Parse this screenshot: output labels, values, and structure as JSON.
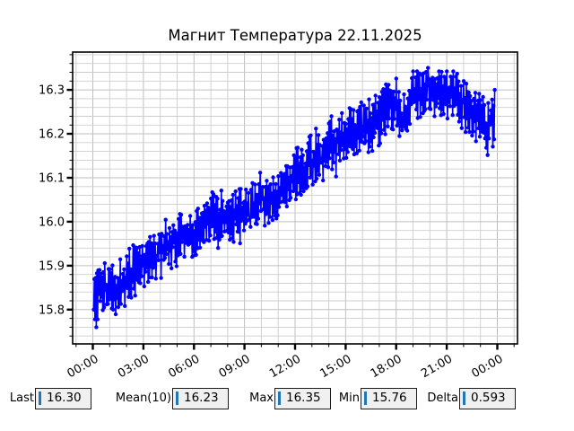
{
  "window": {
    "background": "#ffffff"
  },
  "chart_data": {
    "type": "line",
    "title": "Магнит Температура 22.11.2025",
    "xlabel": "",
    "ylabel": "",
    "x_tick_hours": [
      0,
      3,
      6,
      9,
      12,
      15,
      18,
      21,
      24
    ],
    "x_tick_labels": [
      "00:00",
      "03:00",
      "06:00",
      "09:00",
      "12:00",
      "15:00",
      "18:00",
      "21:00",
      "00:00"
    ],
    "x_minor_step_hours": 1,
    "y_ticks": [
      15.8,
      15.9,
      16.0,
      16.1,
      16.2,
      16.3
    ],
    "y_tick_labels": [
      "15.8",
      "15.9",
      "16.0",
      "16.1",
      "16.2",
      "16.3"
    ],
    "y_minor_step": 0.02,
    "xlim_hours": [
      -1.2,
      25.2
    ],
    "ylim": [
      15.722,
      16.386
    ],
    "grid": true,
    "legend": "none",
    "series": [
      {
        "name": "magnet-temperature",
        "color": "#0000ff",
        "marker": "circle",
        "marker_size": 4.4,
        "line_width": 1.6,
        "time_span_hours": [
          0.05,
          23.85
        ],
        "trend_points": [
          [
            0,
            15.83
          ],
          [
            0.5,
            15.845
          ],
          [
            1,
            15.85
          ],
          [
            1.5,
            15.845
          ],
          [
            2,
            15.87
          ],
          [
            2.5,
            15.885
          ],
          [
            3,
            15.9
          ],
          [
            3.5,
            15.92
          ],
          [
            4,
            15.94
          ],
          [
            4.5,
            15.95
          ],
          [
            5,
            15.96
          ],
          [
            5.5,
            15.965
          ],
          [
            6,
            15.98
          ],
          [
            6.5,
            16.0
          ],
          [
            7,
            16.015
          ],
          [
            7.5,
            16.01
          ],
          [
            8,
            16.02
          ],
          [
            8.5,
            16.01
          ],
          [
            9,
            16.02
          ],
          [
            9.5,
            16.035
          ],
          [
            10,
            16.05
          ],
          [
            10.5,
            16.045
          ],
          [
            11,
            16.065
          ],
          [
            11.5,
            16.085
          ],
          [
            12,
            16.105
          ],
          [
            12.5,
            16.12
          ],
          [
            13,
            16.14
          ],
          [
            13.5,
            16.155
          ],
          [
            14,
            16.17
          ],
          [
            14.5,
            16.18
          ],
          [
            15,
            16.19
          ],
          [
            15.5,
            16.205
          ],
          [
            16,
            16.215
          ],
          [
            16.5,
            16.22
          ],
          [
            17,
            16.235
          ],
          [
            17.5,
            16.255
          ],
          [
            18,
            16.27
          ],
          [
            18.3,
            16.23
          ],
          [
            18.7,
            16.26
          ],
          [
            19,
            16.285
          ],
          [
            19.5,
            16.295
          ],
          [
            20,
            16.295
          ],
          [
            20.5,
            16.3
          ],
          [
            21,
            16.295
          ],
          [
            21.5,
            16.285
          ],
          [
            22,
            16.27
          ],
          [
            22.5,
            16.255
          ],
          [
            23,
            16.24
          ],
          [
            23.3,
            16.215
          ],
          [
            23.6,
            16.225
          ],
          [
            23.85,
            16.24
          ]
        ],
        "noise": {
          "alternating_amplitude": 0.042,
          "random_amplitude": 0.028,
          "spike_probability": 0.04,
          "spike_depth": 0.04,
          "count": 620,
          "seed": 20251122
        },
        "observed": {
          "first": 15.8,
          "min": 15.76,
          "min_hour": 0.2,
          "max": 16.35,
          "max_hour": 19.9,
          "last": 16.3
        }
      }
    ]
  },
  "bottom_bar": {
    "fields": [
      {
        "label": "Last",
        "value": "16.30"
      },
      {
        "label": "Mean(10)",
        "value": "16.23"
      },
      {
        "label": "Max",
        "value": "16.35"
      },
      {
        "label": "Min",
        "value": "15.76"
      },
      {
        "label": "Delta",
        "value": "0.593"
      }
    ],
    "caret_color": "#1f77b4",
    "field_background": "#f0f0f0"
  },
  "colors": {
    "line": "#0000ff",
    "grid_major": "#bfbfbf",
    "grid_minor": "#cdcdcd",
    "frame": "#000000",
    "background": "#ffffff"
  }
}
